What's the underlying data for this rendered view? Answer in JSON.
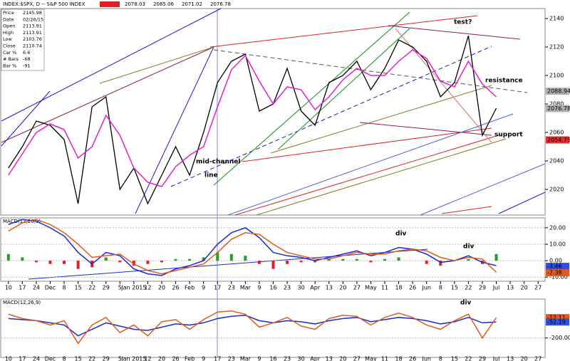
{
  "chart_data": [
    {
      "type": "line",
      "title": "INDEX:$SPX, D -- S&P 500 INDEX",
      "header_values": [
        2078.03,
        2085.06,
        2071.02,
        2076.78
      ],
      "info": [
        [
          "Price",
          2145.98
        ],
        [
          "Date",
          "02/26/15"
        ],
        [
          "Open",
          2113.91
        ],
        [
          "High",
          2113.91
        ],
        [
          "Low",
          2103.76
        ],
        [
          "Close",
          2110.74
        ],
        [
          "Car %",
          6.6
        ],
        [
          "# Bars",
          -68
        ],
        [
          "Bar %",
          -91
        ]
      ],
      "categories": [
        "10",
        "17",
        "24",
        "Dec",
        "8",
        "15",
        "22",
        "29",
        "5",
        "Jan 2015",
        "12",
        "20",
        "26",
        "Feb",
        "9",
        "17",
        "23",
        "Mar",
        "9",
        "16",
        "23",
        "30",
        "Apr",
        "13",
        "20",
        "27",
        "May",
        "11",
        "18",
        "26",
        "Jun",
        "8",
        "15",
        "22",
        "29",
        "Jul",
        "13",
        "20",
        "27"
      ],
      "ylim": [
        2002,
        2147
      ],
      "yticks": [
        2020,
        2040,
        2060,
        2080,
        2100,
        2120,
        2140
      ],
      "series": [
        {
          "color": "#000000",
          "values": [
            2035,
            2050,
            2068,
            2065,
            2055,
            2010,
            2078,
            2085,
            2020,
            2035,
            2010,
            2030,
            2050,
            2030,
            2060,
            2095,
            2110,
            2115,
            2075,
            2080,
            2105,
            2075,
            2065,
            2095,
            2100,
            2110,
            2090,
            2105,
            2125,
            2120,
            2110,
            2085,
            2095,
            2128,
            2058,
            2077,
            null,
            null,
            null
          ]
        },
        {
          "color": "#e020d0",
          "values": [
            2030,
            2045,
            2060,
            2066,
            2062,
            2042,
            2050,
            2072,
            2058,
            2035,
            2025,
            2022,
            2036,
            2044,
            2050,
            2078,
            2104,
            2114,
            2096,
            2080,
            2092,
            2090,
            2076,
            2085,
            2097,
            2105,
            2100,
            2100,
            2110,
            2118,
            2112,
            2096,
            2092,
            2110,
            2094,
            2085,
            null,
            null,
            null
          ]
        }
      ],
      "markers": [
        {
          "value": 2088.94,
          "color": "#b0b0b0"
        },
        {
          "value": 2076.78,
          "color": "#b0b0b0"
        },
        {
          "value": 2054.75,
          "color": "#e03030"
        }
      ],
      "annotations": [
        {
          "text": "test?",
          "color": "#e02020"
        },
        {
          "text": "resistance",
          "color": "#e02020"
        },
        {
          "text": "support",
          "color": "#1a8a1a"
        },
        {
          "text": "mid-channel",
          "color": "#1a1ad0"
        },
        {
          "text": "line",
          "color": "#1a1ad0"
        }
      ]
    },
    {
      "type": "line",
      "title": "MACD(12,26,9)",
      "ylim": [
        -12.5,
        26
      ],
      "yticks": [
        {
          "value": -10,
          "label": "-10.00"
        },
        {
          "value": 0,
          "label": "0.00"
        },
        {
          "value": 10,
          "label": "10.00"
        },
        {
          "value": 20,
          "label": "20.00"
        }
      ],
      "series": [
        {
          "color": "#1a2ad0",
          "values": [
            22,
            25,
            24,
            20,
            15,
            5,
            -2,
            5,
            3,
            -5,
            -8,
            -9,
            -5,
            -3,
            0,
            10,
            17,
            20,
            14,
            5,
            3,
            2,
            0,
            2,
            4,
            6,
            3,
            5,
            8,
            7,
            4,
            -1,
            0,
            3,
            -1,
            -3,
            null,
            null,
            null
          ]
        },
        {
          "color": "#e05a20",
          "values": [
            18,
            23,
            25,
            22,
            17,
            10,
            2,
            3,
            4,
            -2,
            -6,
            -8,
            -6,
            -4,
            -2,
            5,
            13,
            17,
            16,
            10,
            5,
            3,
            1,
            1,
            3,
            5,
            4,
            4,
            6,
            7,
            6,
            2,
            0,
            2,
            1,
            -7,
            null,
            null,
            null
          ]
        }
      ],
      "bars": {
        "up_color": "#22a022",
        "down_color": "#e02020",
        "values": [
          4,
          2,
          -1,
          -2,
          -2,
          -5,
          -4,
          2,
          -1,
          -3,
          -2,
          -1,
          1,
          1,
          2,
          5,
          4,
          3,
          -2,
          -5,
          -2,
          -1,
          -1,
          1,
          1,
          1,
          -1,
          1,
          2,
          0,
          -2,
          -3,
          0,
          1,
          -2,
          4,
          null,
          null,
          null
        ]
      },
      "markers": [
        {
          "value": -3.46,
          "color": "#3050e0"
        },
        {
          "value": -7.38,
          "color": "#e05a20"
        }
      ],
      "annotations": [
        {
          "text": "div",
          "color": "#e02020"
        },
        {
          "text": "div",
          "color": "#e02020"
        }
      ]
    },
    {
      "type": "line",
      "title": "MACD(12,26,9)",
      "ylim": [
        -380,
        160
      ],
      "yticks": [
        {
          "value": -200,
          "label": "-200.00"
        }
      ],
      "series": [
        {
          "color": "#1a2ad0",
          "values": [
            -20,
            -30,
            -40,
            -60,
            -80,
            -180,
            -120,
            -60,
            -90,
            -120,
            -130,
            -100,
            -70,
            -80,
            -60,
            -20,
            0,
            10,
            -40,
            -60,
            -40,
            -50,
            -70,
            -40,
            -20,
            -10,
            -50,
            -30,
            -10,
            -20,
            -40,
            -70,
            -50,
            -10,
            -60,
            -52,
            null,
            null,
            null
          ]
        },
        {
          "color": "#e05a20",
          "values": [
            20,
            -20,
            -40,
            -80,
            -40,
            -250,
            -80,
            -10,
            -150,
            -80,
            -180,
            -50,
            -30,
            -120,
            -30,
            40,
            50,
            20,
            -100,
            -60,
            -10,
            -90,
            -120,
            -20,
            10,
            0,
            -80,
            -10,
            30,
            -10,
            -80,
            -120,
            -40,
            20,
            -200,
            -12,
            null,
            null,
            null
          ]
        }
      ],
      "markers": [
        {
          "value": -12.11,
          "color": "#e05a20"
        },
        {
          "value": -52.19,
          "color": "#3050e0"
        }
      ],
      "annotations": [
        {
          "text": "div",
          "color": "#e02020"
        }
      ]
    }
  ]
}
